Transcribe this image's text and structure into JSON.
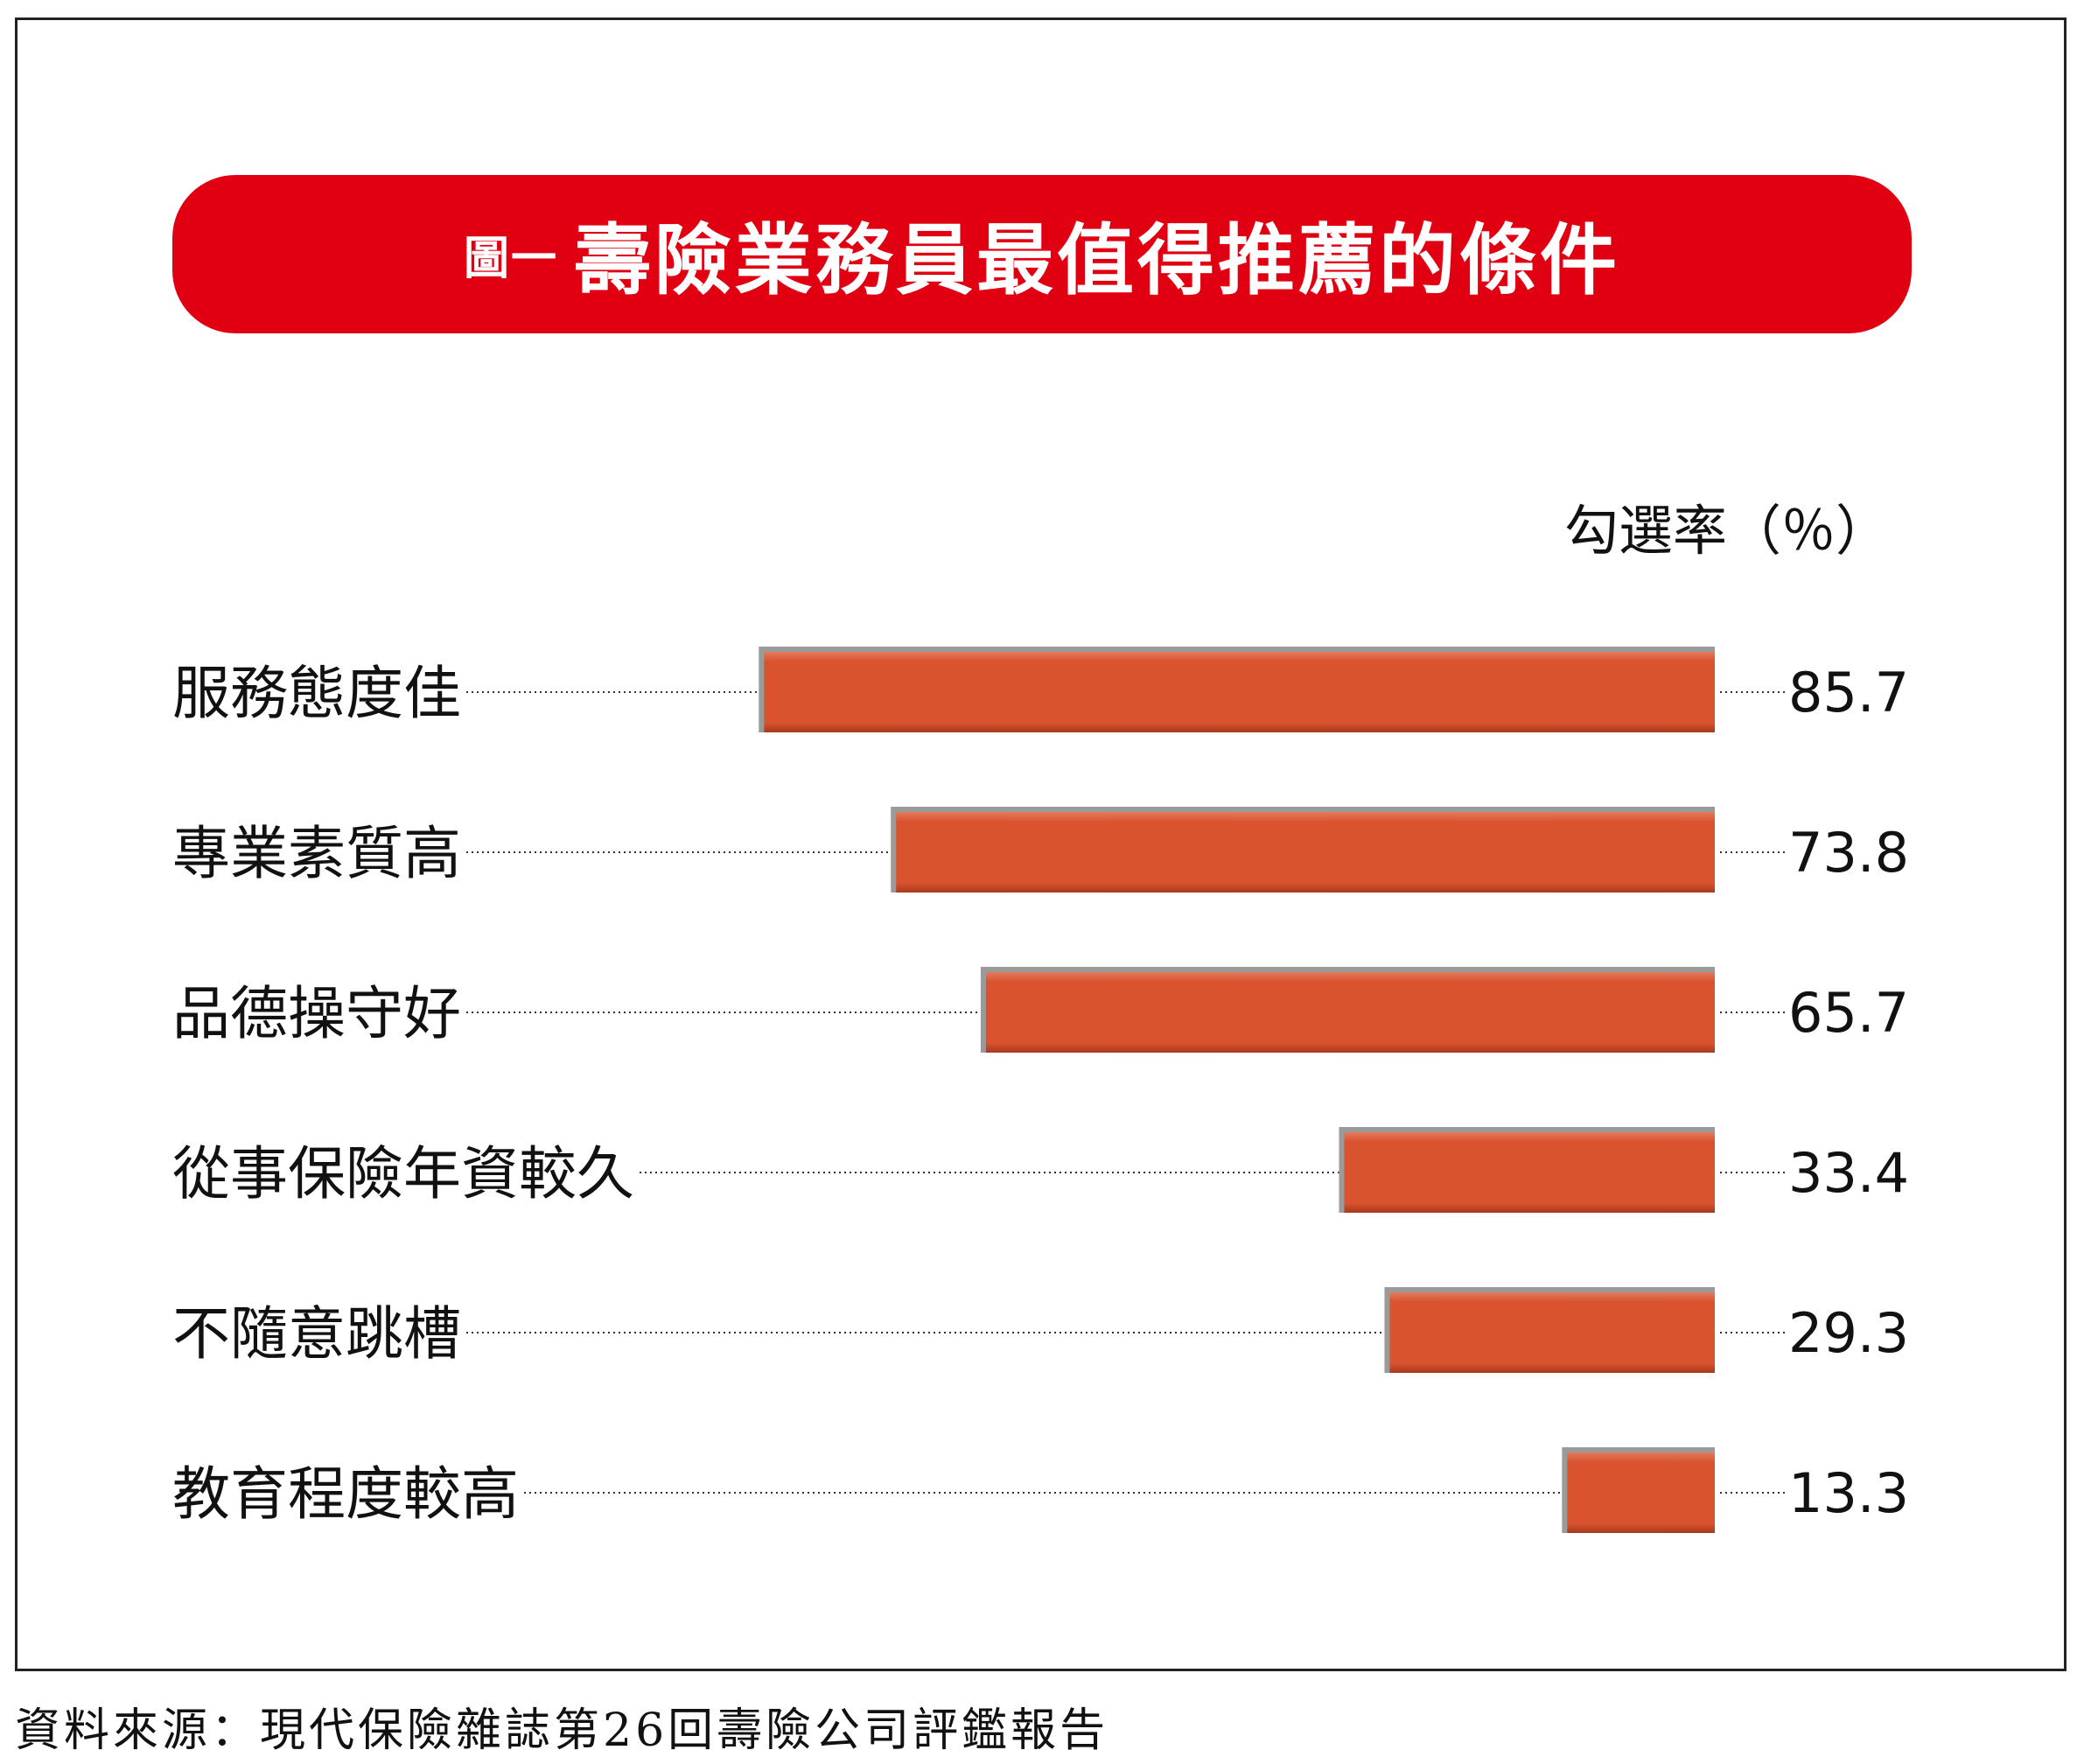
{
  "figure_label": "圖一",
  "chart_data": {
    "type": "bar",
    "orientation": "horizontal",
    "title": "壽險業務員最值得推薦的條件",
    "unit_label": "勾選率（％）",
    "categories": [
      "服務態度佳",
      "專業素質高",
      "品德操守好",
      "從事保險年資較久",
      "不隨意跳槽",
      "教育程度較高"
    ],
    "values": [
      85.7,
      73.8,
      65.7,
      33.4,
      29.3,
      13.3
    ],
    "value_labels": [
      "85.7",
      "73.8",
      "65.7",
      "33.4",
      "29.3",
      "13.3"
    ],
    "xlim": [
      0,
      100
    ],
    "grid": false,
    "bar_color": "#d9532f",
    "banner_color": "#e00012"
  },
  "source": "資料來源：現代保險雜誌第26回壽險公司評鑑報告"
}
